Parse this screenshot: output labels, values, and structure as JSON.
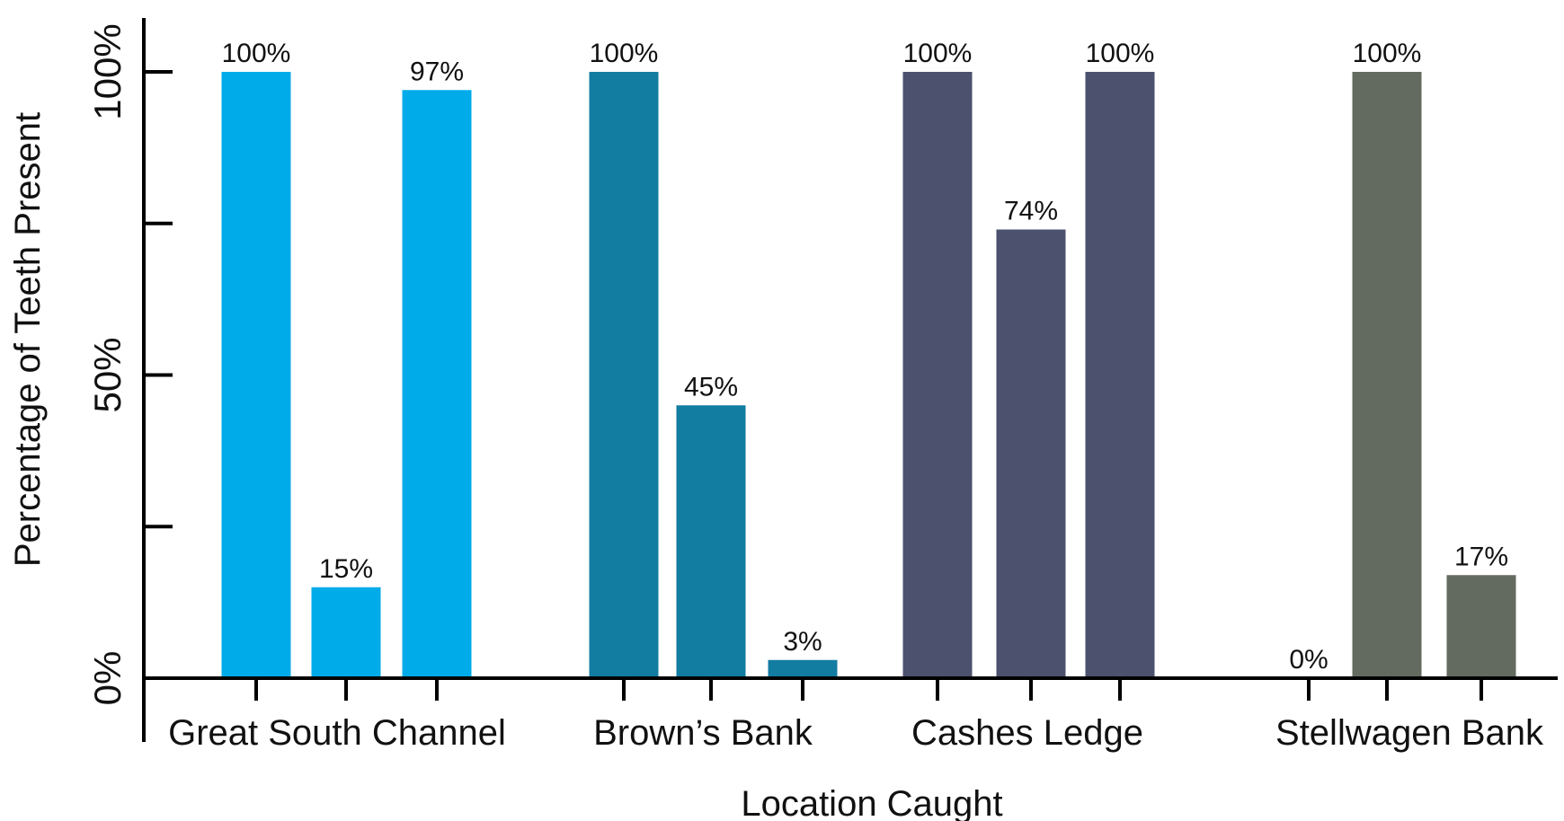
{
  "chart_data": {
    "type": "bar",
    "xlabel": "Location Caught",
    "ylabel": "Percentage of Teeth Present",
    "ylim": [
      0,
      100
    ],
    "y_ticks": [
      0,
      25,
      50,
      75,
      100
    ],
    "y_tick_labels": [
      "0%",
      "",
      "50%",
      "",
      "100%"
    ],
    "grid": false,
    "groups": [
      {
        "name": "Great South Channel",
        "color": "#00ABE9",
        "values": [
          100,
          15,
          97
        ],
        "labels": [
          "100%",
          "15%",
          "97%"
        ]
      },
      {
        "name": "Brown’s Bank",
        "color": "#137CA1",
        "values": [
          100,
          45,
          3
        ],
        "labels": [
          "100%",
          "45%",
          "3%"
        ]
      },
      {
        "name": "Cashes Ledge",
        "color": "#4C516D",
        "values": [
          100,
          74,
          100
        ],
        "labels": [
          "100%",
          "74%",
          "100%"
        ]
      },
      {
        "name": "Stellwagen Bank",
        "color": "#636A5F",
        "values": [
          0,
          100,
          17
        ],
        "labels": [
          "0%",
          "100%",
          "17%"
        ]
      }
    ]
  }
}
